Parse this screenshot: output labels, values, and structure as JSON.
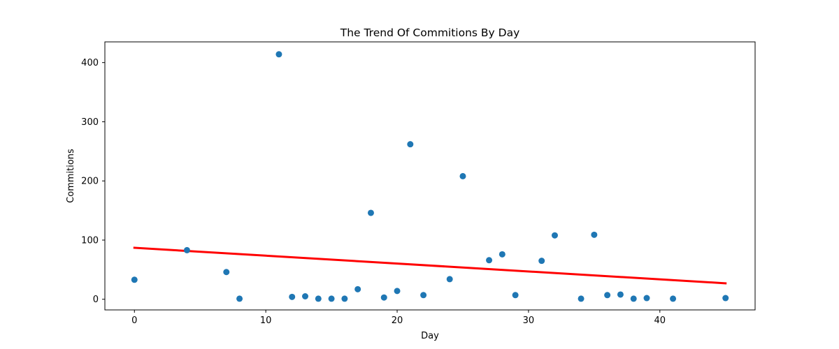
{
  "chart_data": {
    "type": "scatter",
    "title": "The Trend Of Commitions By Day",
    "xlabel": "Day",
    "ylabel": "Commitions",
    "xlim": [
      -2.25,
      47.25
    ],
    "ylim": [
      -18,
      435
    ],
    "xticks": [
      0,
      10,
      20,
      30,
      40
    ],
    "yticks": [
      0,
      100,
      200,
      300,
      400
    ],
    "grid": false,
    "points": [
      {
        "x": 0,
        "y": 33
      },
      {
        "x": 4,
        "y": 83
      },
      {
        "x": 7,
        "y": 46
      },
      {
        "x": 8,
        "y": 1
      },
      {
        "x": 11,
        "y": 414
      },
      {
        "x": 12,
        "y": 4
      },
      {
        "x": 13,
        "y": 5
      },
      {
        "x": 14,
        "y": 1
      },
      {
        "x": 15,
        "y": 1
      },
      {
        "x": 16,
        "y": 1
      },
      {
        "x": 17,
        "y": 17
      },
      {
        "x": 18,
        "y": 146
      },
      {
        "x": 19,
        "y": 3
      },
      {
        "x": 20,
        "y": 14
      },
      {
        "x": 21,
        "y": 262
      },
      {
        "x": 22,
        "y": 7
      },
      {
        "x": 24,
        "y": 34
      },
      {
        "x": 25,
        "y": 208
      },
      {
        "x": 27,
        "y": 66
      },
      {
        "x": 28,
        "y": 76
      },
      {
        "x": 29,
        "y": 7
      },
      {
        "x": 31,
        "y": 65
      },
      {
        "x": 32,
        "y": 108
      },
      {
        "x": 34,
        "y": 1
      },
      {
        "x": 35,
        "y": 109
      },
      {
        "x": 36,
        "y": 7
      },
      {
        "x": 37,
        "y": 8
      },
      {
        "x": 38,
        "y": 1
      },
      {
        "x": 39,
        "y": 2
      },
      {
        "x": 41,
        "y": 1
      },
      {
        "x": 45,
        "y": 2
      }
    ],
    "trendline": {
      "x": [
        0,
        45
      ],
      "y": [
        87,
        27
      ]
    },
    "colors": {
      "points": "#1f77b4",
      "trendline": "#ff0000"
    }
  }
}
